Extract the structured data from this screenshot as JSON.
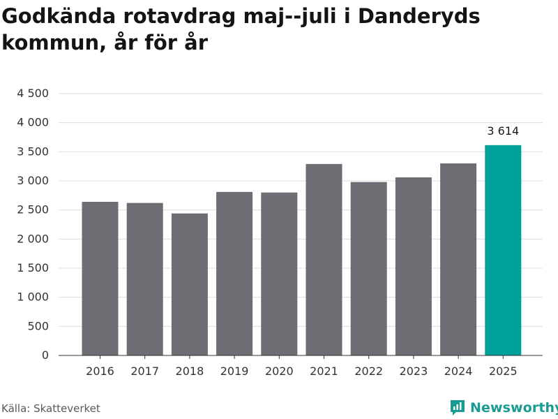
{
  "chart_data": {
    "type": "bar",
    "title": "Godkända rotavdrag maj--juli i Danderyds kommun, år för år",
    "xlabel": "",
    "ylabel": "",
    "categories": [
      "2016",
      "2017",
      "2018",
      "2019",
      "2020",
      "2021",
      "2022",
      "2023",
      "2024",
      "2025"
    ],
    "values": [
      2640,
      2620,
      2440,
      2810,
      2800,
      3290,
      2980,
      3060,
      3300,
      3614
    ],
    "ylim": [
      0,
      4500
    ],
    "yticks": [
      0,
      500,
      1000,
      1500,
      2000,
      2500,
      3000,
      3500,
      4000,
      4500
    ],
    "ytick_labels": [
      "0",
      "500",
      "1 000",
      "1 500",
      "2 000",
      "2 500",
      "3 000",
      "3 500",
      "4 000",
      "4 500"
    ],
    "data_labels": [
      {
        "category": "2025",
        "text": "3 614"
      }
    ],
    "highlight": {
      "category": "2025",
      "color": "#00a19a"
    },
    "bar_color": "#6e6d73",
    "grid": "horizontal",
    "legend": "none"
  },
  "footer": {
    "source": "Källa: Skatteverket",
    "brand": "Newsworthy",
    "brand_icon": "newsworthy-logo-icon",
    "brand_color": "#1a9b91"
  }
}
